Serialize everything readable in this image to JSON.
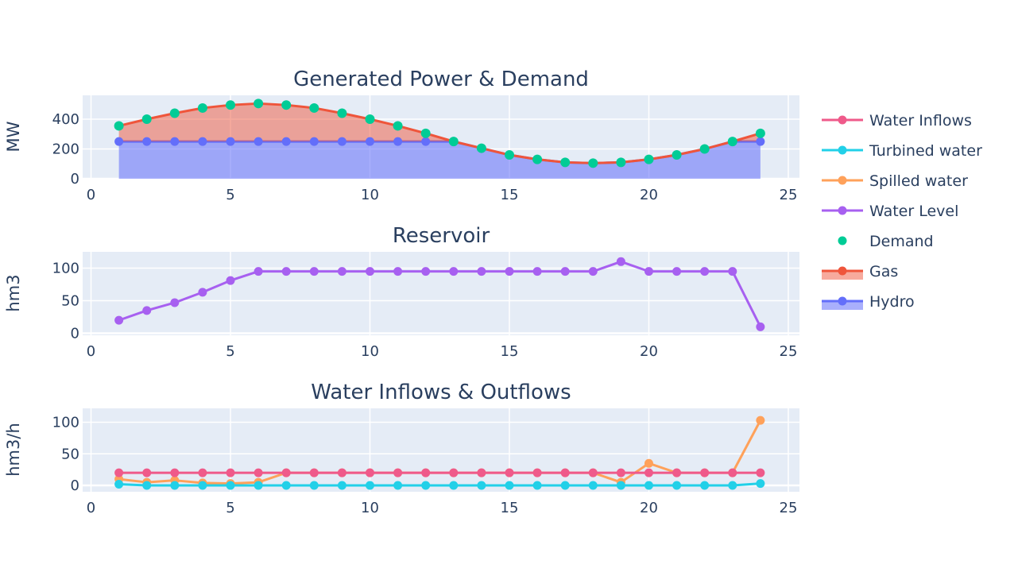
{
  "colors": {
    "plot_bg": "#e5ecf6",
    "grid": "#ffffff",
    "text": "#2a3f5f",
    "water_inflows": "#ef5a8a",
    "turbined_water": "#22d0e8",
    "spilled_water": "#ffa15a",
    "water_level": "#a760f0",
    "demand": "#00cc96",
    "gas": "#ef553b",
    "gas_fill": "rgba(239,85,59,0.5)",
    "hydro": "#636efa",
    "hydro_fill": "rgba(99,110,250,0.55)"
  },
  "legend": {
    "placement": "right",
    "items": [
      {
        "label": "Water Inflows",
        "color_key": "water_inflows",
        "mode": "lines+markers"
      },
      {
        "label": "Turbined water",
        "color_key": "turbined_water",
        "mode": "lines+markers"
      },
      {
        "label": "Spilled water",
        "color_key": "spilled_water",
        "mode": "lines+markers"
      },
      {
        "label": "Water Level",
        "color_key": "water_level",
        "mode": "lines+markers"
      },
      {
        "label": "Demand",
        "color_key": "demand",
        "mode": "markers"
      },
      {
        "label": "Gas",
        "color_key": "gas",
        "mode": "fill"
      },
      {
        "label": "Hydro",
        "color_key": "hydro",
        "mode": "fill"
      }
    ]
  },
  "chart_data": [
    {
      "type": "area",
      "title": "Generated Power & Demand",
      "xlabel": "",
      "ylabel": "MW",
      "xlim": [
        -0.3,
        25.4
      ],
      "ylim": [
        0,
        560
      ],
      "xticks": [
        0,
        5,
        10,
        15,
        20,
        25
      ],
      "yticks": [
        0,
        200,
        400
      ],
      "grid": true,
      "x": [
        1,
        2,
        3,
        4,
        5,
        6,
        7,
        8,
        9,
        10,
        11,
        12,
        13,
        14,
        15,
        16,
        17,
        18,
        19,
        20,
        21,
        22,
        23,
        24
      ],
      "series": [
        {
          "name": "Hydro",
          "color_key": "hydro",
          "mode": "fill",
          "values": [
            250,
            250,
            250,
            250,
            250,
            250,
            250,
            250,
            250,
            250,
            250,
            250,
            250,
            205,
            160,
            130,
            110,
            105,
            110,
            130,
            160,
            200,
            250,
            250
          ]
        },
        {
          "name": "Gas",
          "color_key": "gas",
          "mode": "fill-stack",
          "values": [
            105,
            150,
            190,
            225,
            245,
            255,
            245,
            225,
            190,
            150,
            105,
            55,
            0,
            0,
            0,
            0,
            0,
            0,
            0,
            0,
            0,
            0,
            0,
            55
          ]
        },
        {
          "name": "Demand",
          "color_key": "demand",
          "mode": "markers",
          "values": [
            355,
            400,
            440,
            475,
            495,
            505,
            495,
            475,
            440,
            400,
            355,
            305,
            250,
            205,
            160,
            130,
            110,
            105,
            110,
            130,
            160,
            200,
            250,
            305
          ]
        }
      ]
    },
    {
      "type": "line",
      "title": "Reservoir",
      "xlabel": "",
      "ylabel": "hm3",
      "xlim": [
        -0.3,
        25.4
      ],
      "ylim": [
        -3,
        125
      ],
      "xticks": [
        0,
        5,
        10,
        15,
        20,
        25
      ],
      "yticks": [
        0,
        50,
        100
      ],
      "grid": true,
      "x": [
        1,
        2,
        3,
        4,
        5,
        6,
        7,
        8,
        9,
        10,
        11,
        12,
        13,
        14,
        15,
        16,
        17,
        18,
        19,
        20,
        21,
        22,
        23,
        24
      ],
      "series": [
        {
          "name": "Water Level",
          "color_key": "water_level",
          "mode": "lines+markers",
          "values": [
            20,
            35,
            47,
            63,
            81,
            95,
            95,
            95,
            95,
            95,
            95,
            95,
            95,
            95,
            95,
            95,
            95,
            95,
            110,
            95,
            95,
            95,
            95,
            10
          ]
        }
      ]
    },
    {
      "type": "line",
      "title": "Water Inflows & Outflows",
      "xlabel": "",
      "ylabel": "hm3/h",
      "xlim": [
        -0.3,
        25.4
      ],
      "ylim": [
        -10,
        122
      ],
      "xticks": [
        0,
        5,
        10,
        15,
        20,
        25
      ],
      "yticks": [
        0,
        50,
        100
      ],
      "grid": true,
      "x": [
        1,
        2,
        3,
        4,
        5,
        6,
        7,
        8,
        9,
        10,
        11,
        12,
        13,
        14,
        15,
        16,
        17,
        18,
        19,
        20,
        21,
        22,
        23,
        24
      ],
      "series": [
        {
          "name": "Spilled water",
          "color_key": "spilled_water",
          "mode": "lines+markers",
          "values": [
            10,
            5,
            8,
            4,
            3,
            5,
            20,
            20,
            20,
            20,
            20,
            20,
            20,
            20,
            20,
            20,
            20,
            20,
            5,
            35,
            20,
            20,
            20,
            103
          ]
        },
        {
          "name": "Water Inflows",
          "color_key": "water_inflows",
          "mode": "lines+markers",
          "values": [
            20,
            20,
            20,
            20,
            20,
            20,
            20,
            20,
            20,
            20,
            20,
            20,
            20,
            20,
            20,
            20,
            20,
            20,
            20,
            20,
            20,
            20,
            20,
            20
          ]
        },
        {
          "name": "Turbined water",
          "color_key": "turbined_water",
          "mode": "lines+markers",
          "values": [
            2,
            0,
            0,
            0,
            0,
            0,
            0,
            0,
            0,
            0,
            0,
            0,
            0,
            0,
            0,
            0,
            0,
            0,
            0,
            0,
            0,
            0,
            0,
            3
          ]
        }
      ]
    }
  ]
}
